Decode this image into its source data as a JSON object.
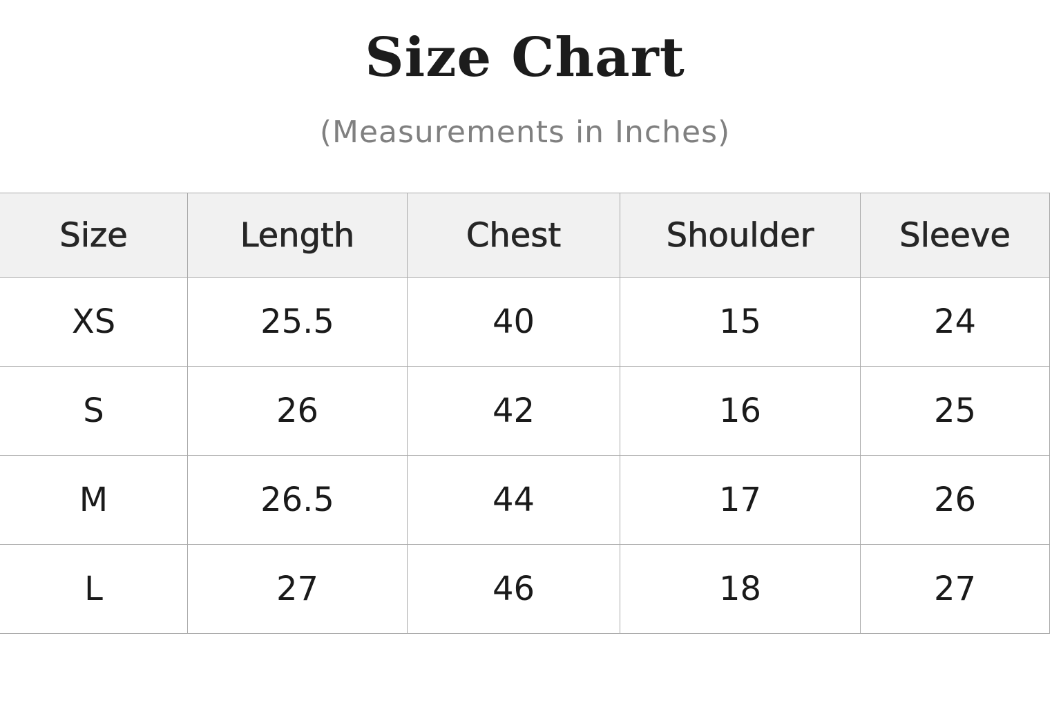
{
  "title": "Size Chart",
  "subtitle": "(Measurements in Inches)",
  "table": {
    "headers": [
      "Size",
      "Length",
      "Chest",
      "Shoulder",
      "Sleeve"
    ],
    "rows": [
      [
        "XS",
        "25.5",
        "40",
        "15",
        "24"
      ],
      [
        "S",
        "26",
        "42",
        "16",
        "25"
      ],
      [
        "M",
        "26.5",
        "44",
        "17",
        "26"
      ],
      [
        "L",
        "27",
        "46",
        "18",
        "27"
      ]
    ]
  },
  "colors": {
    "header_bg": "#f1f1f1",
    "border": "#a9a9a9",
    "subtitle": "#808080"
  }
}
